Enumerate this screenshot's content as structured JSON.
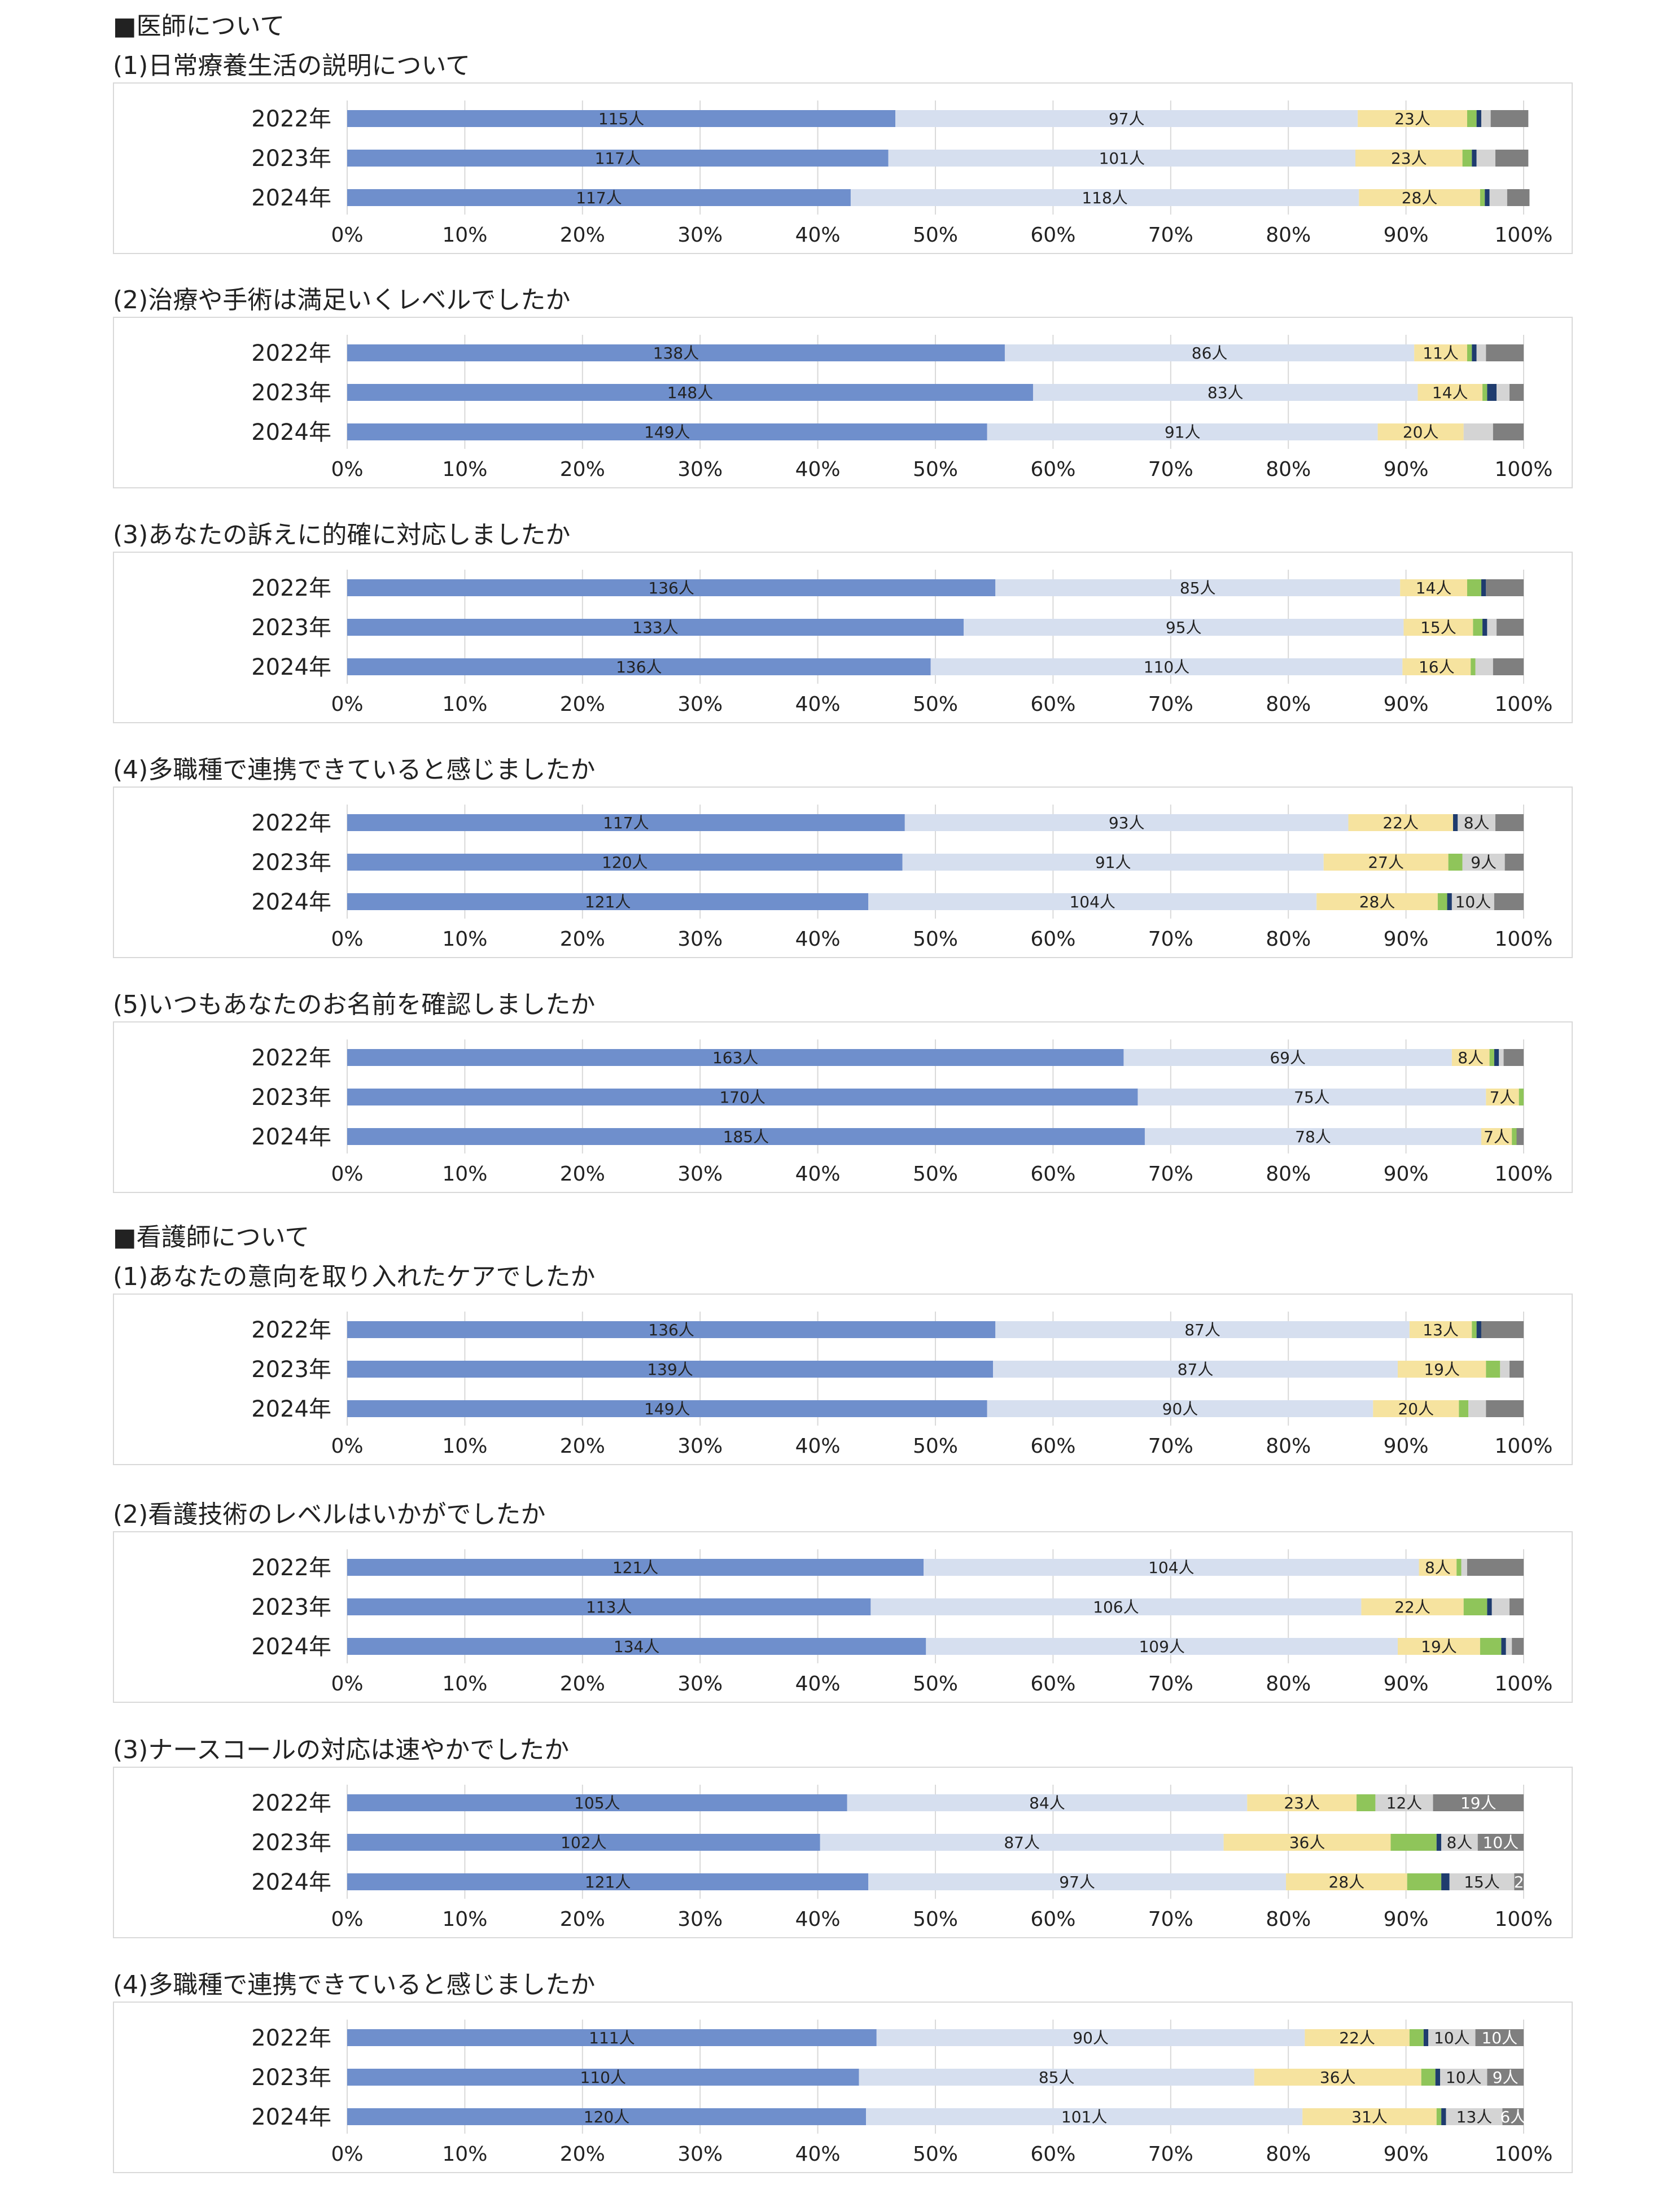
{
  "sections": [
    {
      "heading": "■医師について",
      "charts": [
        {
          "title": "(1)日常療養生活の説明について",
          "chart_data": {
            "type": "stacked-bar-100",
            "categories": [
              "2022年",
              "2023年",
              "2024年"
            ],
            "series": [
              {
                "name": "s1",
                "values": [
                  46.6,
                  46.0,
                  42.8
                ]
              },
              {
                "name": "s2",
                "values": [
                  39.3,
                  39.7,
                  43.2
                ]
              },
              {
                "name": "s3",
                "values": [
                  9.3,
                  9.1,
                  10.3
                ]
              },
              {
                "name": "s4",
                "values": [
                  0.8,
                  0.8,
                  0.4
                ]
              },
              {
                "name": "s5",
                "values": [
                  0.4,
                  0.4,
                  0.4
                ]
              },
              {
                "name": "s6",
                "values": [
                  0.8,
                  1.6,
                  1.5
                ]
              },
              {
                "name": "s7",
                "values": [
                  3.2,
                  2.8,
                  1.9
                ]
              }
            ],
            "labels": [
              [
                "115人",
                "97人",
                "23人"
              ],
              [
                "117人",
                "101人",
                "23人"
              ],
              [
                "117人",
                "118人",
                "28人"
              ]
            ]
          }
        },
        {
          "title": "(2)治療や手術は満足いくレベルでしたか",
          "chart_data": {
            "type": "stacked-bar-100",
            "categories": [
              "2022年",
              "2023年",
              "2024年"
            ],
            "series": [
              {
                "name": "s1",
                "values": [
                  55.9,
                  58.3,
                  54.4
                ]
              },
              {
                "name": "s2",
                "values": [
                  34.8,
                  32.7,
                  33.2
                ]
              },
              {
                "name": "s3",
                "values": [
                  4.5,
                  5.5,
                  7.3
                ]
              },
              {
                "name": "s4",
                "values": [
                  0.4,
                  0.4,
                  0
                ]
              },
              {
                "name": "s5",
                "values": [
                  0.4,
                  0.8,
                  0
                ]
              },
              {
                "name": "s6",
                "values": [
                  0.8,
                  1.1,
                  2.5
                ]
              },
              {
                "name": "s7",
                "values": [
                  3.2,
                  1.2,
                  2.6
                ]
              }
            ],
            "labels": [
              [
                "138人",
                "86人",
                "11人"
              ],
              [
                "148人",
                "83人",
                "14人"
              ],
              [
                "149人",
                "91人",
                "20人"
              ]
            ]
          }
        },
        {
          "title": "(3)あなたの訴えに的確に対応しましたか",
          "chart_data": {
            "type": "stacked-bar-100",
            "categories": [
              "2022年",
              "2023年",
              "2024年"
            ],
            "series": [
              {
                "name": "s1",
                "values": [
                  55.1,
                  52.4,
                  49.6
                ]
              },
              {
                "name": "s2",
                "values": [
                  34.4,
                  37.4,
                  40.1
                ]
              },
              {
                "name": "s3",
                "values": [
                  5.7,
                  5.9,
                  5.8
                ]
              },
              {
                "name": "s4",
                "values": [
                  1.2,
                  0.8,
                  0.4
                ]
              },
              {
                "name": "s5",
                "values": [
                  0.4,
                  0.4,
                  0
                ]
              },
              {
                "name": "s6",
                "values": [
                  0,
                  0.8,
                  1.5
                ]
              },
              {
                "name": "s7",
                "values": [
                  3.2,
                  2.3,
                  2.6
                ]
              }
            ],
            "labels": [
              [
                "136人",
                "85人",
                "14人"
              ],
              [
                "133人",
                "95人",
                "15人"
              ],
              [
                "136人",
                "110人",
                "16人"
              ]
            ]
          }
        },
        {
          "title": "(4)多職種で連携できていると感じましたか",
          "chart_data": {
            "type": "stacked-bar-100",
            "categories": [
              "2022年",
              "2023年",
              "2024年"
            ],
            "series": [
              {
                "name": "s1",
                "values": [
                  47.4,
                  47.2,
                  44.3
                ]
              },
              {
                "name": "s2",
                "values": [
                  37.7,
                  35.8,
                  38.1
                ]
              },
              {
                "name": "s3",
                "values": [
                  8.9,
                  10.6,
                  10.3
                ]
              },
              {
                "name": "s4",
                "values": [
                  0,
                  1.2,
                  0.8
                ]
              },
              {
                "name": "s5",
                "values": [
                  0.4,
                  0,
                  0.4
                ]
              },
              {
                "name": "s6",
                "values": [
                  3.2,
                  3.6,
                  3.6
                ]
              },
              {
                "name": "s7",
                "values": [
                  2.4,
                  1.6,
                  2.5
                ]
              }
            ],
            "labels": [
              [
                "117人",
                "93人",
                "22人",
                "8人"
              ],
              [
                "120人",
                "91人",
                "27人",
                "9人"
              ],
              [
                "121人",
                "104人",
                "28人",
                "10人"
              ]
            ]
          }
        },
        {
          "title": "(5)いつもあなたのお名前を確認しましたか",
          "chart_data": {
            "type": "stacked-bar-100",
            "categories": [
              "2022年",
              "2023年",
              "2024年"
            ],
            "series": [
              {
                "name": "s1",
                "values": [
                  66.0,
                  67.2,
                  67.8
                ]
              },
              {
                "name": "s2",
                "values": [
                  27.9,
                  29.6,
                  28.6
                ]
              },
              {
                "name": "s3",
                "values": [
                  3.2,
                  2.8,
                  2.6
                ]
              },
              {
                "name": "s4",
                "values": [
                  0.4,
                  0.4,
                  0.4
                ]
              },
              {
                "name": "s5",
                "values": [
                  0.4,
                  0,
                  0
                ]
              },
              {
                "name": "s6",
                "values": [
                  0.4,
                  0,
                  0
                ]
              },
              {
                "name": "s7",
                "values": [
                  1.7,
                  0,
                  0.6
                ]
              }
            ],
            "labels": [
              [
                "163人",
                "69人",
                "8人"
              ],
              [
                "170人",
                "75人",
                "7人"
              ],
              [
                "185人",
                "78人",
                "7人"
              ]
            ]
          }
        }
      ]
    },
    {
      "heading": "■看護師について",
      "charts": [
        {
          "title": "(1)あなたの意向を取り入れたケアでしたか",
          "chart_data": {
            "type": "stacked-bar-100",
            "categories": [
              "2022年",
              "2023年",
              "2024年"
            ],
            "series": [
              {
                "name": "s1",
                "values": [
                  55.1,
                  54.9,
                  54.4
                ]
              },
              {
                "name": "s2",
                "values": [
                  35.2,
                  34.4,
                  32.8
                ]
              },
              {
                "name": "s3",
                "values": [
                  5.3,
                  7.5,
                  7.3
                ]
              },
              {
                "name": "s4",
                "values": [
                  0.4,
                  1.2,
                  0.8
                ]
              },
              {
                "name": "s5",
                "values": [
                  0.4,
                  0,
                  0
                ]
              },
              {
                "name": "s6",
                "values": [
                  0,
                  0.8,
                  1.5
                ]
              },
              {
                "name": "s7",
                "values": [
                  3.6,
                  1.2,
                  3.2
                ]
              }
            ],
            "labels": [
              [
                "136人",
                "87人",
                "13人"
              ],
              [
                "139人",
                "87人",
                "19人"
              ],
              [
                "149人",
                "90人",
                "20人"
              ]
            ]
          }
        },
        {
          "title": "(2)看護技術のレベルはいかがでしたか",
          "chart_data": {
            "type": "stacked-bar-100",
            "categories": [
              "2022年",
              "2023年",
              "2024年"
            ],
            "series": [
              {
                "name": "s1",
                "values": [
                  49.0,
                  44.5,
                  49.2
                ]
              },
              {
                "name": "s2",
                "values": [
                  42.1,
                  41.7,
                  40.1
                ]
              },
              {
                "name": "s3",
                "values": [
                  3.2,
                  8.7,
                  7.0
                ]
              },
              {
                "name": "s4",
                "values": [
                  0.4,
                  2.0,
                  1.8
                ]
              },
              {
                "name": "s5",
                "values": [
                  0,
                  0.4,
                  0.4
                ]
              },
              {
                "name": "s6",
                "values": [
                  0.5,
                  1.5,
                  0.5
                ]
              },
              {
                "name": "s7",
                "values": [
                  4.8,
                  1.2,
                  1.0
                ]
              }
            ],
            "labels": [
              [
                "121人",
                "104人",
                "8人"
              ],
              [
                "113人",
                "106人",
                "22人"
              ],
              [
                "134人",
                "109人",
                "19人"
              ]
            ]
          }
        },
        {
          "title": "(3)ナースコールの対応は速やかでしたか",
          "chart_data": {
            "type": "stacked-bar-100",
            "categories": [
              "2022年",
              "2023年",
              "2024年"
            ],
            "series": [
              {
                "name": "s1",
                "values": [
                  42.5,
                  40.2,
                  44.3
                ]
              },
              {
                "name": "s2",
                "values": [
                  34.0,
                  34.3,
                  35.5
                ]
              },
              {
                "name": "s3",
                "values": [
                  9.3,
                  14.2,
                  10.3
                ]
              },
              {
                "name": "s4",
                "values": [
                  1.6,
                  3.9,
                  2.9
                ]
              },
              {
                "name": "s5",
                "values": [
                  0,
                  0.4,
                  0.7
                ]
              },
              {
                "name": "s6",
                "values": [
                  4.9,
                  3.1,
                  5.5
                ]
              },
              {
                "name": "s7",
                "values": [
                  7.7,
                  3.9,
                  0.8
                ]
              }
            ],
            "labels": [
              [
                "105人",
                "84人",
                "23人",
                "12人",
                "19人"
              ],
              [
                "102人",
                "87人",
                "36人",
                "8人",
                "10人"
              ],
              [
                "121人",
                "97人",
                "28人",
                "15人",
                "2"
              ]
            ]
          }
        },
        {
          "title": "(4)多職種で連携できていると感じましたか",
          "chart_data": {
            "type": "stacked-bar-100",
            "categories": [
              "2022年",
              "2023年",
              "2024年"
            ],
            "series": [
              {
                "name": "s1",
                "values": [
                  45.0,
                  43.5,
                  44.1
                ]
              },
              {
                "name": "s2",
                "values": [
                  36.4,
                  33.6,
                  37.1
                ]
              },
              {
                "name": "s3",
                "values": [
                  8.9,
                  14.2,
                  11.4
                ]
              },
              {
                "name": "s4",
                "values": [
                  1.2,
                  1.2,
                  0.4
                ]
              },
              {
                "name": "s5",
                "values": [
                  0.4,
                  0.4,
                  0.4
                ]
              },
              {
                "name": "s6",
                "values": [
                  4.0,
                  4.0,
                  4.8
                ]
              },
              {
                "name": "s7",
                "values": [
                  4.1,
                  3.1,
                  1.8
                ]
              }
            ],
            "labels": [
              [
                "111人",
                "90人",
                "22人",
                "10人",
                "10人"
              ],
              [
                "110人",
                "85人",
                "36人",
                "10人",
                "9人"
              ],
              [
                "120人",
                "101人",
                "31人",
                "13人",
                "6人"
              ]
            ]
          }
        }
      ]
    }
  ],
  "axis": {
    "ticks": [
      "0%",
      "10%",
      "20%",
      "30%",
      "40%",
      "50%",
      "60%",
      "70%",
      "80%",
      "90%",
      "100%"
    ]
  },
  "colors": {
    "s1": "#6f8fcc",
    "s2": "#d6dfef",
    "s3": "#f6e39f",
    "s4": "#8fc55a",
    "s5": "#1f3c6e",
    "s6": "#d4d4d4",
    "s7": "#7f7f7f",
    "grid": "#d9d9d9",
    "text_dark": "#222222",
    "text_light": "#ffffff"
  }
}
